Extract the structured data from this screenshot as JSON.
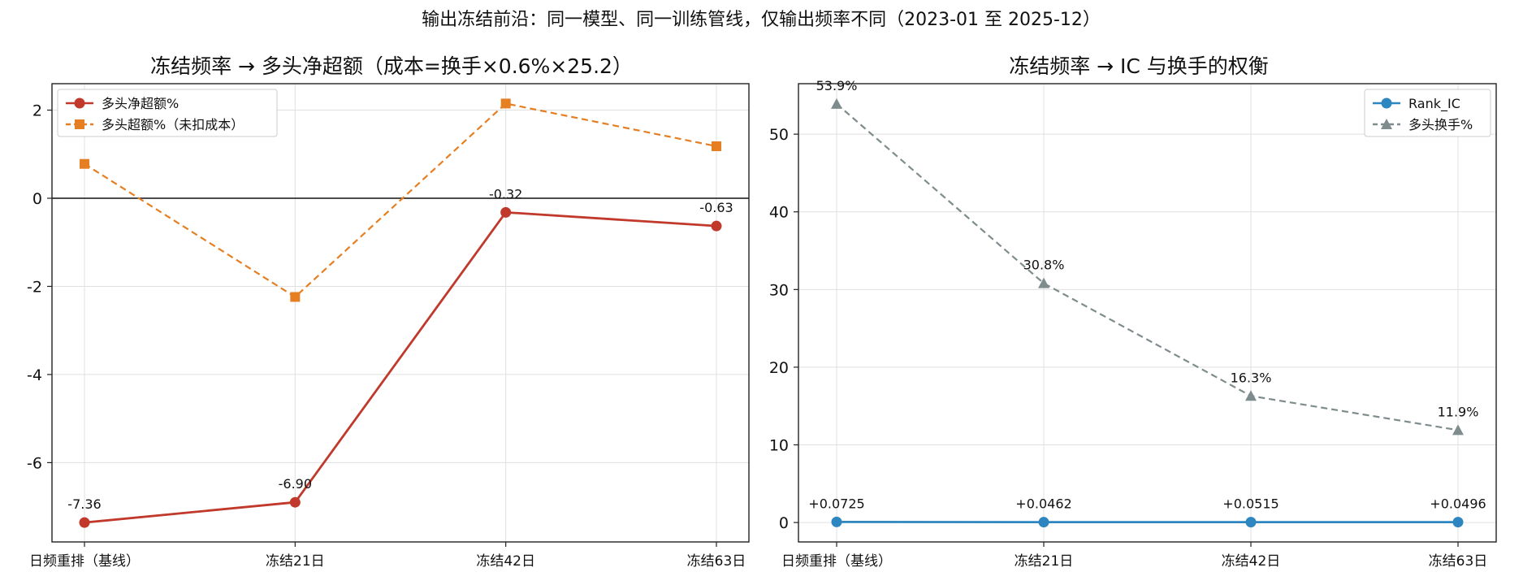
{
  "suptitle": "输出冻结前沿：同一模型、同一训练管线，仅输出频率不同（2023-01 至 2025-12）",
  "chart_data": [
    {
      "type": "line",
      "title": "冻结频率 → 多头净超额（成本=换手×0.6%×25.2）",
      "xlabel": "",
      "ylabel": "",
      "categories": [
        "日频重排（基线）",
        "冻结21日",
        "冻结42日",
        "冻结63日"
      ],
      "ylim": [
        -7.8,
        2.6
      ],
      "yticks": [
        -6,
        -4,
        -2,
        0,
        2
      ],
      "ytick_labels": [
        "-6",
        "-4",
        "-2",
        "0",
        "2"
      ],
      "zero_line": true,
      "grid": true,
      "legend_position": "upper-left",
      "series": [
        {
          "name": "多头净超额%",
          "values": [
            -7.36,
            -6.9,
            -0.32,
            -0.63
          ],
          "labels": [
            "-7.36",
            "-6.90",
            "-0.32",
            "-0.63"
          ],
          "color": "#c0392b",
          "marker": "circle",
          "dashed": false
        },
        {
          "name": "多头超额%（未扣成本）",
          "values": [
            0.78,
            -2.24,
            2.15,
            1.18
          ],
          "color": "#e67e22",
          "marker": "square",
          "dashed": true
        }
      ]
    },
    {
      "type": "line",
      "title": "冻结频率 → IC 与换手的权衡",
      "xlabel": "",
      "ylabel": "",
      "categories": [
        "日频重排（基线）",
        "冻结21日",
        "冻结42日",
        "冻结63日"
      ],
      "ylim": [
        -2.5,
        56.5
      ],
      "yticks": [
        0,
        10,
        20,
        30,
        40,
        50
      ],
      "ytick_labels": [
        "0",
        "10",
        "20",
        "30",
        "40",
        "50"
      ],
      "grid": true,
      "legend_position": "upper-right",
      "series": [
        {
          "name": "Rank_IC",
          "values": [
            0.0725,
            0.0462,
            0.0515,
            0.0496
          ],
          "labels": [
            "+0.0725",
            "+0.0462",
            "+0.0515",
            "+0.0496"
          ],
          "color": "#2e86c1",
          "marker": "circle",
          "dashed": false
        },
        {
          "name": "多头换手%",
          "values": [
            53.9,
            30.8,
            16.3,
            11.9
          ],
          "labels": [
            "53.9%",
            "30.8%",
            "16.3%",
            "11.9%"
          ],
          "color": "#7f8c8d",
          "marker": "triangle",
          "dashed": true
        }
      ]
    }
  ]
}
